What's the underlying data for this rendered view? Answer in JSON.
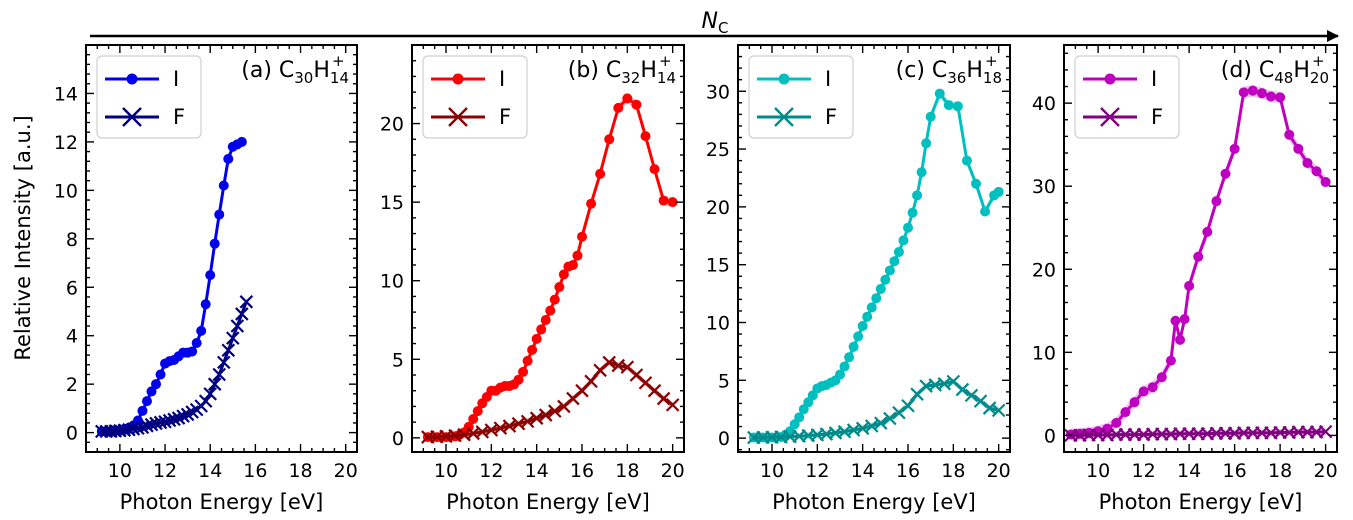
{
  "figure": {
    "trend_arrow_label": "N",
    "trend_arrow_label_sub": "C",
    "xlabel": "Photon Energy [eV]",
    "ylabel": "Relative Intensity [a.u.]"
  },
  "chart_data": [
    {
      "type": "line",
      "panel_label": "(a) C",
      "formula": {
        "c_sub": "30",
        "h": "H",
        "h_sub": "14",
        "charge": "+"
      },
      "xlim": [
        8.5,
        20.5
      ],
      "ylim": [
        -0.8,
        16
      ],
      "xticks": [
        10,
        12,
        14,
        16,
        18,
        20
      ],
      "yticks": [
        0,
        2,
        4,
        6,
        8,
        10,
        12,
        14
      ],
      "legend_position": "top-left",
      "series": [
        {
          "name": "I",
          "color": "#0000ee",
          "marker": "circle",
          "band": 0.1,
          "x": [
            9.2,
            9.4,
            9.6,
            9.8,
            10.0,
            10.2,
            10.4,
            10.6,
            10.8,
            11.0,
            11.2,
            11.4,
            11.6,
            11.8,
            12.0,
            12.2,
            12.4,
            12.6,
            12.8,
            13.0,
            13.2,
            13.4,
            13.6,
            13.8,
            14.0,
            14.2,
            14.4,
            14.6,
            14.8,
            15.0,
            15.2,
            15.4
          ],
          "y": [
            0.05,
            0.05,
            0.05,
            0.08,
            0.1,
            0.15,
            0.2,
            0.3,
            0.5,
            0.9,
            1.3,
            1.7,
            2.0,
            2.4,
            2.85,
            2.95,
            3.0,
            3.15,
            3.3,
            3.3,
            3.35,
            3.7,
            4.2,
            5.3,
            6.5,
            7.8,
            9.0,
            10.2,
            11.3,
            11.8,
            11.9,
            12.0
          ]
        },
        {
          "name": "F",
          "color": "#000080",
          "marker": "x",
          "band": 0.1,
          "x": [
            9.2,
            9.4,
            9.6,
            9.8,
            10.0,
            10.2,
            10.4,
            10.6,
            10.8,
            11.0,
            11.2,
            11.4,
            11.6,
            11.8,
            12.0,
            12.2,
            12.4,
            12.6,
            12.8,
            13.0,
            13.2,
            13.4,
            13.6,
            13.8,
            14.0,
            14.2,
            14.4,
            14.6,
            14.8,
            15.0,
            15.2,
            15.4,
            15.6
          ],
          "y": [
            0.05,
            0.05,
            0.05,
            0.07,
            0.08,
            0.1,
            0.12,
            0.15,
            0.18,
            0.22,
            0.28,
            0.33,
            0.38,
            0.42,
            0.45,
            0.5,
            0.55,
            0.6,
            0.68,
            0.75,
            0.85,
            0.95,
            1.1,
            1.3,
            1.6,
            2.0,
            2.4,
            2.9,
            3.4,
            3.9,
            4.4,
            4.9,
            5.4
          ]
        }
      ]
    },
    {
      "type": "line",
      "panel_label": "(b) C",
      "formula": {
        "c_sub": "32",
        "h": "H",
        "h_sub": "14",
        "charge": "+"
      },
      "xlim": [
        8.5,
        20.5
      ],
      "ylim": [
        -0.9,
        25
      ],
      "xticks": [
        10,
        12,
        14,
        16,
        18,
        20
      ],
      "yticks": [
        0,
        5,
        10,
        15,
        20
      ],
      "legend_position": "top-left",
      "series": [
        {
          "name": "I",
          "color": "#ff0000",
          "marker": "circle",
          "band": 0.3,
          "x": [
            9.2,
            9.6,
            10.0,
            10.4,
            10.6,
            10.8,
            11.0,
            11.2,
            11.4,
            11.6,
            11.8,
            12.0,
            12.2,
            12.4,
            12.6,
            12.8,
            13.0,
            13.2,
            13.4,
            13.6,
            13.8,
            14.0,
            14.2,
            14.4,
            14.6,
            14.8,
            15.0,
            15.2,
            15.4,
            15.6,
            15.8,
            16.0,
            16.4,
            16.8,
            17.2,
            17.6,
            18.0,
            18.4,
            18.8,
            19.2,
            19.6,
            20.0
          ],
          "y": [
            0.05,
            0.05,
            0.05,
            0.1,
            0.2,
            0.35,
            0.7,
            1.2,
            1.7,
            2.2,
            2.6,
            3.0,
            3.0,
            3.2,
            3.3,
            3.3,
            3.4,
            3.7,
            4.2,
            4.9,
            5.6,
            6.3,
            6.9,
            7.5,
            8.1,
            8.8,
            9.6,
            10.4,
            10.9,
            11.0,
            11.6,
            12.8,
            14.9,
            16.8,
            19.0,
            21.0,
            21.6,
            21.2,
            19.2,
            17.1,
            15.1,
            15.0
          ]
        },
        {
          "name": "F",
          "color": "#8b0000",
          "marker": "x",
          "band": 0.2,
          "x": [
            9.2,
            9.6,
            10.0,
            10.4,
            10.8,
            11.2,
            11.6,
            12.0,
            12.4,
            12.8,
            13.2,
            13.6,
            14.0,
            14.4,
            14.8,
            15.2,
            15.6,
            16.0,
            16.4,
            16.8,
            17.2,
            17.6,
            18.0,
            18.4,
            18.8,
            19.2,
            19.6,
            20.0
          ],
          "y": [
            0.05,
            0.07,
            0.1,
            0.14,
            0.2,
            0.28,
            0.38,
            0.5,
            0.62,
            0.75,
            0.9,
            1.05,
            1.25,
            1.45,
            1.7,
            2.0,
            2.5,
            3.0,
            3.6,
            4.3,
            4.8,
            4.6,
            4.5,
            4.0,
            3.5,
            3.0,
            2.5,
            2.1
          ]
        }
      ]
    },
    {
      "type": "line",
      "panel_label": "(c) C",
      "formula": {
        "c_sub": "36",
        "h": "H",
        "h_sub": "18",
        "charge": "+"
      },
      "xlim": [
        8.5,
        20.5
      ],
      "ylim": [
        -1.2,
        34
      ],
      "xticks": [
        10,
        12,
        14,
        16,
        18,
        20
      ],
      "yticks": [
        0,
        5,
        10,
        15,
        20,
        25,
        30
      ],
      "legend_position": "top-left",
      "series": [
        {
          "name": "I",
          "color": "#00bfbf",
          "marker": "circle",
          "band": 0.4,
          "x": [
            9.2,
            9.6,
            10.0,
            10.4,
            10.6,
            10.8,
            11.0,
            11.2,
            11.4,
            11.6,
            11.8,
            12.0,
            12.2,
            12.4,
            12.6,
            12.8,
            13.0,
            13.2,
            13.4,
            13.6,
            13.8,
            14.0,
            14.2,
            14.4,
            14.6,
            14.8,
            15.0,
            15.2,
            15.4,
            15.6,
            15.8,
            16.0,
            16.2,
            16.4,
            16.6,
            16.8,
            17.0,
            17.4,
            17.8,
            18.2,
            18.6,
            19.0,
            19.4,
            19.8,
            20.0
          ],
          "y": [
            0.05,
            0.05,
            0.05,
            0.1,
            0.3,
            0.6,
            1.2,
            1.8,
            2.5,
            3.1,
            3.7,
            4.3,
            4.5,
            4.6,
            4.8,
            5.0,
            5.5,
            6.2,
            7.0,
            7.9,
            8.8,
            9.7,
            10.5,
            11.3,
            12.1,
            12.9,
            13.7,
            14.5,
            15.3,
            16.1,
            17.1,
            18.2,
            19.5,
            21.0,
            23.0,
            25.5,
            27.8,
            29.8,
            28.8,
            28.7,
            24.0,
            22.0,
            19.6,
            21.0,
            21.3
          ]
        },
        {
          "name": "F",
          "color": "#008b8b",
          "marker": "x",
          "band": 0.3,
          "x": [
            9.2,
            9.6,
            10.0,
            10.4,
            10.8,
            11.2,
            11.6,
            12.0,
            12.4,
            12.8,
            13.2,
            13.6,
            14.0,
            14.4,
            14.8,
            15.2,
            15.6,
            16.0,
            16.4,
            16.8,
            17.2,
            17.6,
            18.0,
            18.4,
            18.8,
            19.2,
            19.6,
            20.0
          ],
          "y": [
            0.05,
            0.06,
            0.08,
            0.1,
            0.13,
            0.17,
            0.22,
            0.28,
            0.35,
            0.45,
            0.55,
            0.7,
            0.85,
            1.05,
            1.3,
            1.7,
            2.2,
            2.8,
            3.8,
            4.5,
            4.6,
            4.7,
            4.9,
            4.2,
            3.7,
            3.2,
            2.6,
            2.4
          ]
        }
      ]
    },
    {
      "type": "line",
      "panel_label": "(d) C",
      "formula": {
        "c_sub": "48",
        "h": "H",
        "h_sub": "20",
        "charge": "+"
      },
      "xlim": [
        8.5,
        20.5
      ],
      "ylim": [
        -2,
        47
      ],
      "xticks": [
        10,
        12,
        14,
        16,
        18,
        20
      ],
      "yticks": [
        0,
        10,
        20,
        30,
        40
      ],
      "legend_position": "top-left",
      "series": [
        {
          "name": "I",
          "color": "#c000c0",
          "marker": "circle",
          "band": 0.7,
          "x": [
            8.8,
            9.2,
            9.6,
            10.0,
            10.4,
            10.8,
            11.2,
            11.6,
            12.0,
            12.4,
            12.8,
            13.2,
            13.4,
            13.6,
            13.8,
            14.0,
            14.4,
            14.8,
            15.2,
            15.6,
            16.0,
            16.4,
            16.8,
            17.2,
            17.6,
            18.0,
            18.4,
            18.8,
            19.2,
            19.6,
            20.0
          ],
          "y": [
            0.1,
            0.2,
            0.3,
            0.5,
            0.8,
            1.5,
            2.8,
            4.0,
            5.3,
            5.8,
            7.0,
            9.0,
            13.8,
            11.5,
            14.0,
            18.0,
            21.5,
            24.5,
            28.2,
            31.5,
            34.5,
            41.3,
            41.5,
            41.2,
            40.8,
            40.7,
            36.2,
            34.5,
            32.8,
            31.8,
            30.5
          ]
        },
        {
          "name": "F",
          "color": "#800080",
          "marker": "x",
          "band": 0.4,
          "x": [
            8.8,
            9.2,
            9.6,
            10.0,
            10.4,
            10.8,
            11.2,
            11.6,
            12.0,
            12.4,
            12.8,
            13.2,
            13.6,
            14.0,
            14.4,
            14.8,
            15.2,
            15.6,
            16.0,
            16.4,
            16.8,
            17.2,
            17.6,
            18.0,
            18.4,
            18.8,
            19.2,
            19.6,
            20.0
          ],
          "y": [
            0.0,
            0.0,
            0.05,
            0.05,
            0.05,
            0.1,
            0.1,
            0.1,
            0.1,
            0.15,
            0.15,
            0.15,
            0.2,
            0.2,
            0.2,
            0.2,
            0.25,
            0.25,
            0.25,
            0.3,
            0.3,
            0.3,
            0.3,
            0.35,
            0.35,
            0.4,
            0.4,
            0.4,
            0.45
          ]
        }
      ]
    }
  ]
}
